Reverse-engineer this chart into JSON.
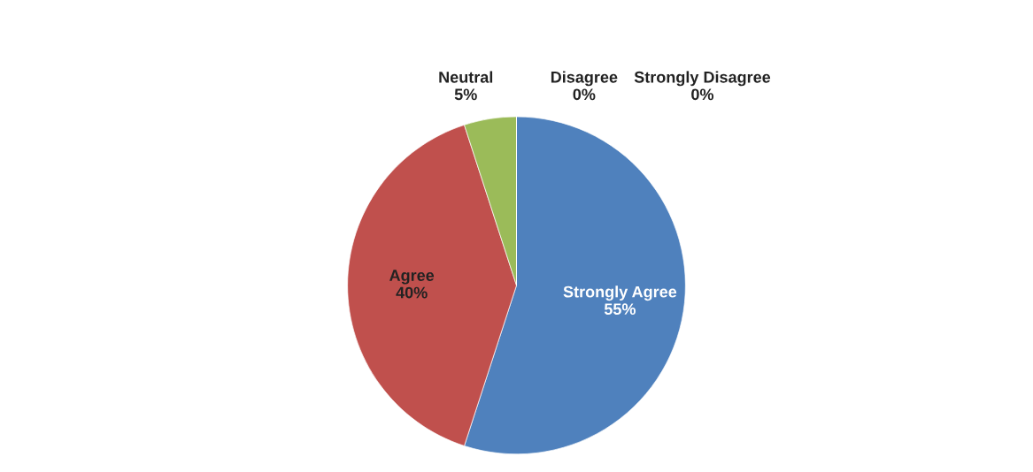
{
  "chart_data": {
    "type": "pie",
    "categories": [
      "Strongly Agree",
      "Agree",
      "Neutral",
      "Disagree",
      "Strongly Disagree"
    ],
    "values": [
      55,
      40,
      5,
      0,
      0
    ],
    "colors": [
      "#4f81bd",
      "#c0504d",
      "#9bbb59",
      "#8064a2",
      "#4bacc6"
    ],
    "value_labels": [
      "55%",
      "40%",
      "5%",
      "0%",
      "0%"
    ],
    "legend": false
  }
}
